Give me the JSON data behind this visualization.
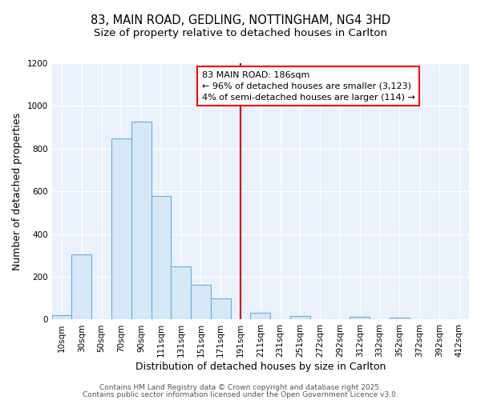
{
  "title_line1": "83, MAIN ROAD, GEDLING, NOTTINGHAM, NG4 3HD",
  "title_line2": "Size of property relative to detached houses in Carlton",
  "xlabel": "Distribution of detached houses by size in Carlton",
  "ylabel": "Number of detached properties",
  "categories": [
    "10sqm",
    "30sqm",
    "50sqm",
    "70sqm",
    "90sqm",
    "111sqm",
    "131sqm",
    "151sqm",
    "171sqm",
    "191sqm",
    "211sqm",
    "231sqm",
    "251sqm",
    "272sqm",
    "292sqm",
    "312sqm",
    "332sqm",
    "352sqm",
    "372sqm",
    "392sqm",
    "412sqm"
  ],
  "values": [
    20,
    305,
    0,
    848,
    925,
    578,
    248,
    163,
    100,
    0,
    33,
    0,
    18,
    0,
    0,
    12,
    0,
    10,
    0,
    0,
    0
  ],
  "bar_color": "#d6e8f7",
  "bar_edge_color": "#6aacdc",
  "bg_color": "#eaf1fb",
  "grid_color": "#ffffff",
  "vline_x": 9,
  "vline_color": "#cc0000",
  "annotation_box_text": "83 MAIN ROAD: 186sqm\n← 96% of detached houses are smaller (3,123)\n4% of semi-detached houses are larger (114) →",
  "ylim": [
    0,
    1200
  ],
  "yticks": [
    0,
    200,
    400,
    600,
    800,
    1000,
    1200
  ],
  "footer_line1": "Contains HM Land Registry data © Crown copyright and database right 2025.",
  "footer_line2": "Contains public sector information licensed under the Open Government Licence v3.0.",
  "title_fontsize": 10.5,
  "subtitle_fontsize": 9.5,
  "axis_label_fontsize": 9,
  "tick_fontsize": 7.5,
  "annotation_fontsize": 8,
  "footer_fontsize": 6.5
}
